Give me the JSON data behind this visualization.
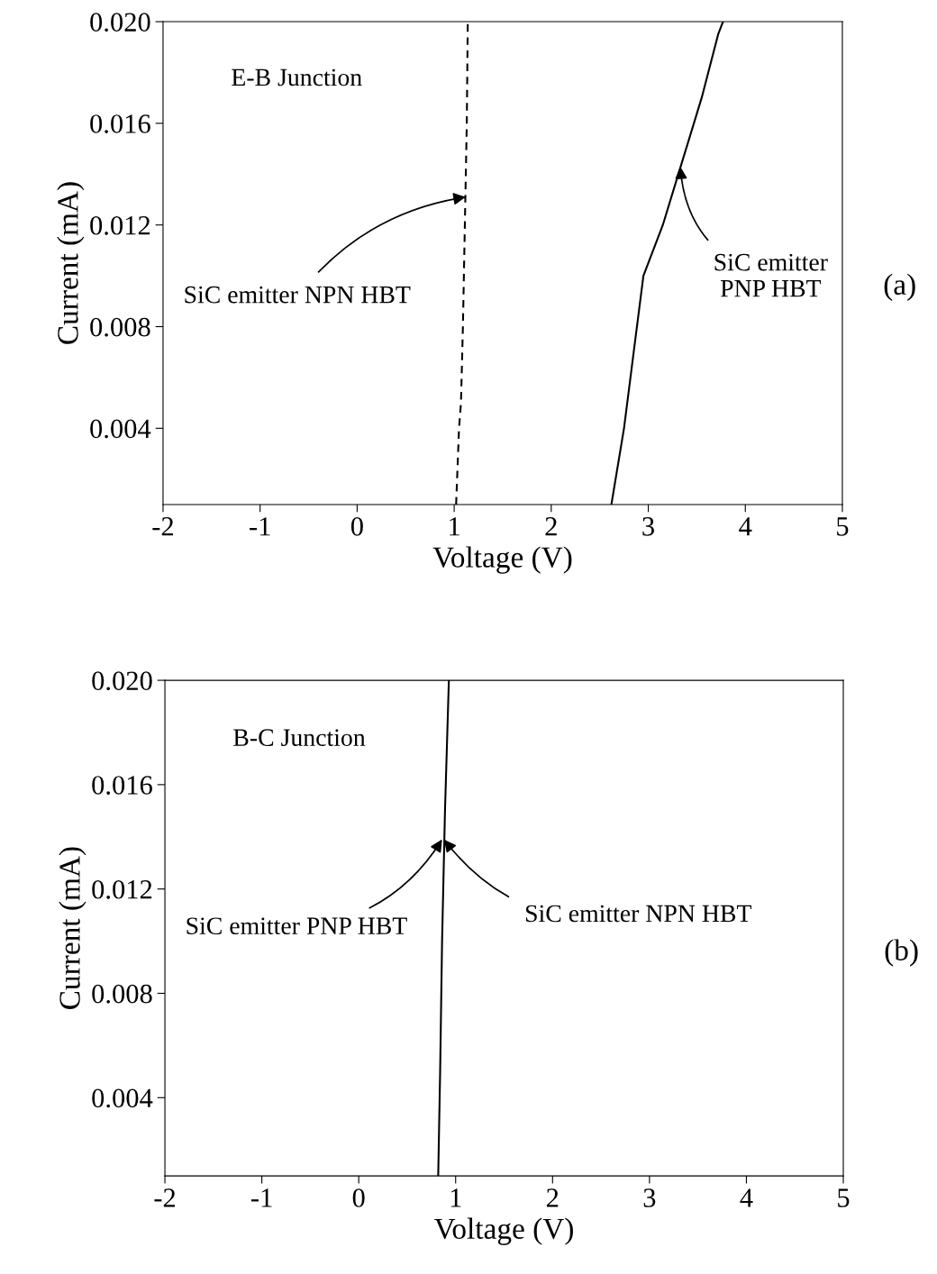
{
  "chart_data": [
    {
      "type": "line",
      "xlabel": "Voltage (V)",
      "ylabel": "Current (mA)",
      "xlim": [
        -2,
        5
      ],
      "ylim": [
        0.001,
        0.02
      ],
      "xticks": [
        -2,
        -1,
        0,
        1,
        2,
        3,
        4,
        5
      ],
      "yticks": [
        {
          "value": 0.004,
          "label": "0.004"
        },
        {
          "value": 0.008,
          "label": "0.008"
        },
        {
          "value": 0.012,
          "label": "0.012"
        },
        {
          "value": 0.016,
          "label": "0.016"
        },
        {
          "value": 0.02,
          "label": "0.020"
        }
      ],
      "grid": false,
      "legend": false,
      "series": [
        {
          "color": "#000000",
          "line_style": "dashed",
          "x": [
            1.02,
            1.05,
            1.07,
            1.09,
            1.11,
            1.13,
            1.14
          ],
          "values": [
            0.001,
            0.004,
            0.005,
            0.008,
            0.012,
            0.016,
            0.02
          ]
        },
        {
          "color": "#000000",
          "line_style": "solid",
          "x": [
            2.62,
            2.75,
            2.85,
            2.95,
            3.15,
            3.35,
            3.55,
            3.72,
            3.77
          ],
          "values": [
            0.001,
            0.004,
            0.007,
            0.01,
            0.012,
            0.0145,
            0.017,
            0.0195,
            0.02
          ]
        }
      ],
      "annotations": [
        "E-B Junction",
        {
          "text": "SiC emitter NPN HBT",
          "x": 1.12,
          "y": 0.0131
        },
        {
          "text": "SiC emitter\nPNP HBT",
          "x": 3.33,
          "y": 0.0143
        },
        "(a)"
      ]
    },
    {
      "type": "line",
      "xlabel": "Voltage (V)",
      "ylabel": "Current (mA)",
      "xlim": [
        -2,
        5
      ],
      "ylim": [
        0.001,
        0.02
      ],
      "xticks": [
        -2,
        -1,
        0,
        1,
        2,
        3,
        4,
        5
      ],
      "yticks": [
        {
          "value": 0.004,
          "label": "0.004"
        },
        {
          "value": 0.008,
          "label": "0.008"
        },
        {
          "value": 0.012,
          "label": "0.012"
        },
        {
          "value": 0.016,
          "label": "0.016"
        },
        {
          "value": 0.02,
          "label": "0.020"
        }
      ],
      "grid": false,
      "legend": false,
      "series": [
        {
          "color": "#000000",
          "line_style": "solid",
          "x": [
            0.82,
            0.84,
            0.86,
            0.89,
            0.93
          ],
          "values": [
            0.001,
            0.005,
            0.01,
            0.015,
            0.02
          ]
        }
      ],
      "annotations": [
        "B-C Junction",
        {
          "text": "SiC emitter PNP HBT",
          "x": 0.86,
          "y": 0.0139
        },
        {
          "text": "SiC emitter NPN HBT",
          "x": 0.88,
          "y": 0.0139
        },
        "(b)"
      ]
    }
  ]
}
